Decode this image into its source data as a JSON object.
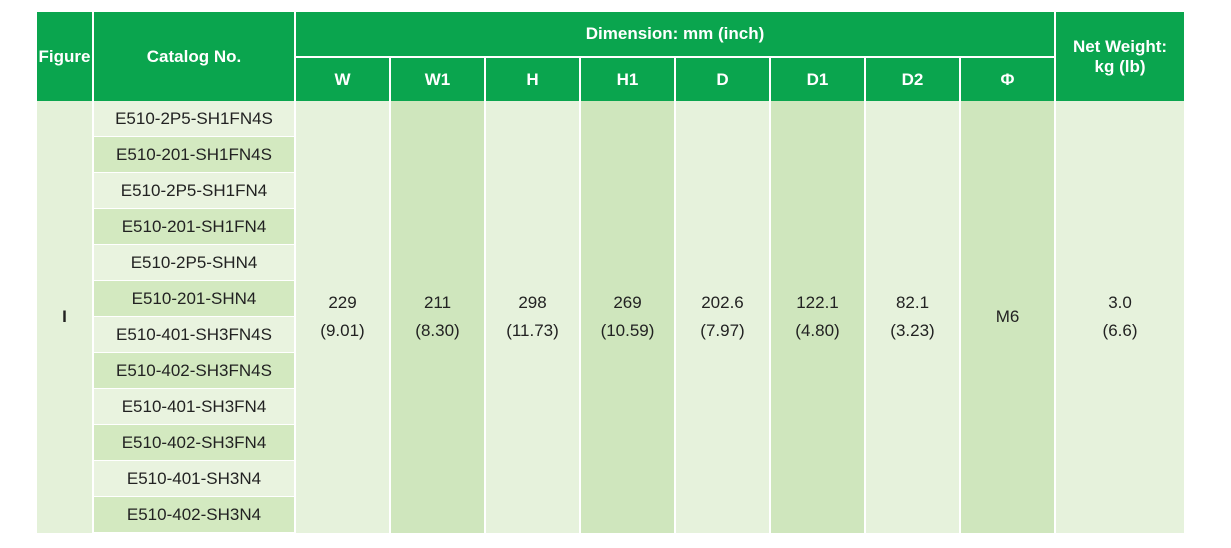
{
  "header": {
    "figure": "Figure",
    "catalog": "Catalog No.",
    "dimension_group": "Dimension: mm (inch)",
    "weight_line1": "Net Weight:",
    "weight_line2": "kg (lb)",
    "columns": [
      "W",
      "W1",
      "H",
      "H1",
      "D",
      "D1",
      "D2",
      "Φ"
    ]
  },
  "figure_value": "I",
  "catalog_numbers": [
    "E510-2P5-SH1FN4S",
    "E510-201-SH1FN4S",
    "E510-2P5-SH1FN4",
    "E510-201-SH1FN4",
    "E510-2P5-SHN4",
    "E510-201-SHN4",
    "E510-401-SH3FN4S",
    "E510-402-SH3FN4S",
    "E510-401-SH3FN4",
    "E510-402-SH3FN4",
    "E510-401-SH3N4",
    "E510-402-SH3N4"
  ],
  "dimensions": [
    {
      "mm": "229",
      "inch": "(9.01)"
    },
    {
      "mm": "211",
      "inch": "(8.30)"
    },
    {
      "mm": "298",
      "inch": "(11.73)"
    },
    {
      "mm": "269",
      "inch": "(10.59)"
    },
    {
      "mm": "202.6",
      "inch": "(7.97)"
    },
    {
      "mm": "122.1",
      "inch": "(4.80)"
    },
    {
      "mm": "82.1",
      "inch": "(3.23)"
    },
    {
      "mm": "M6",
      "inch": ""
    }
  ],
  "weight": {
    "kg": "3.0",
    "lb": "(6.6)"
  },
  "colors": {
    "header_green": "#0aa54e",
    "cell_light": "#e6f2dc",
    "cell_dark": "#cfe6bd"
  }
}
